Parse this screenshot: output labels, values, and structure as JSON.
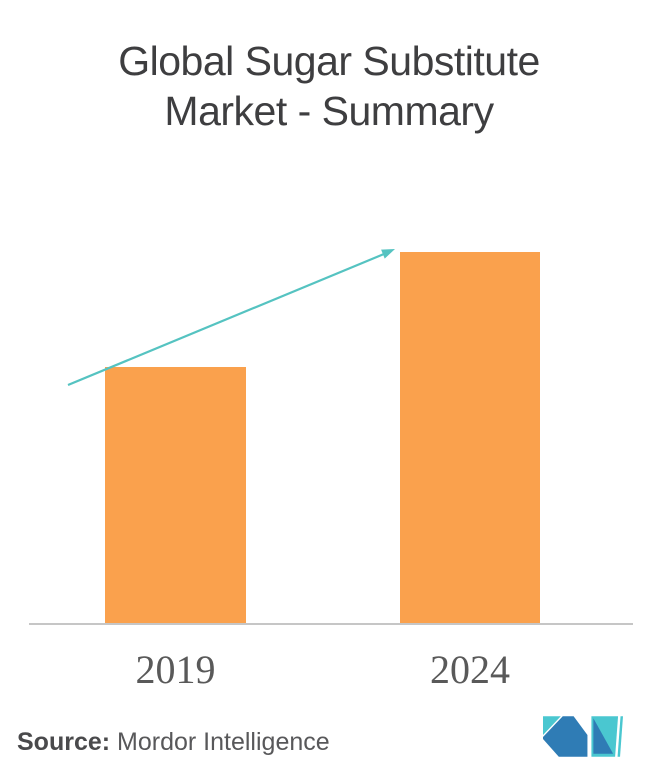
{
  "header": {
    "title_lines": [
      "Global Sugar Substitute",
      "Market - Summary"
    ]
  },
  "chart_data": {
    "type": "bar",
    "title": "Global Sugar Substitute Market - Summary",
    "categories": [
      "2019",
      "2024"
    ],
    "values_estimated_relative": [
      69,
      100
    ],
    "xlabel": "",
    "ylabel": "",
    "ylim": [
      0,
      100
    ],
    "grid": false,
    "legend": false,
    "annotations": [
      "upward trend arrow pointing from the 2019 bar top toward the 2024 bar top"
    ]
  },
  "footer": {
    "source_label": "Source:",
    "source_value": "Mordor Intelligence",
    "logo_name": "mordor-intelligence-logo"
  },
  "colors": {
    "background": "#FFFFFF",
    "bar": "#FAA14D",
    "arrow": "#55C3C1",
    "axis": "#C6C6C6",
    "title_text": "#3E3E40",
    "tick_text": "#595959",
    "source_text": "#58585A",
    "source_bold_text": "#4A4A4C",
    "logo_teal": "#4AC7D0",
    "logo_blue": "#2F7CB5"
  }
}
